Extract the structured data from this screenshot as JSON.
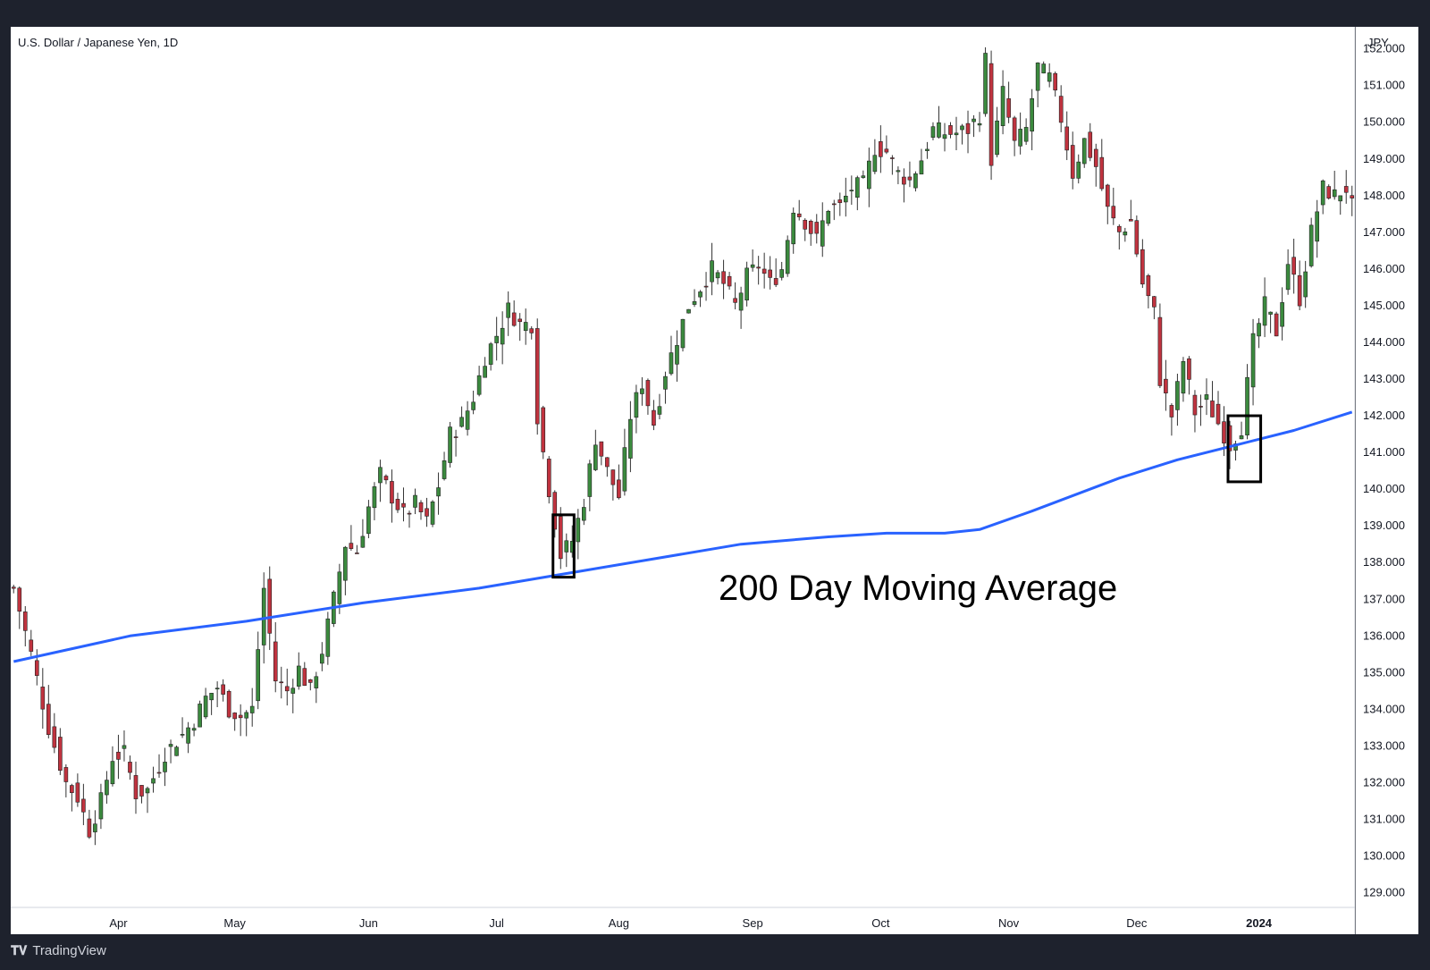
{
  "chart_data": {
    "type": "candlestick",
    "title": "U.S. Dollar / Japanese Yen, 1D",
    "currency": "JPY",
    "annotation": "200 Day Moving Average",
    "y_axis": {
      "min": 128.6,
      "max": 152.6,
      "ticks": [
        "152.000",
        "151.000",
        "150.000",
        "149.000",
        "148.000",
        "147.000",
        "146.000",
        "145.000",
        "144.000",
        "143.000",
        "142.000",
        "141.000",
        "140.000",
        "139.000",
        "138.000",
        "137.000",
        "136.000",
        "135.000",
        "134.000",
        "133.000",
        "132.000",
        "131.000",
        "130.000",
        "129.000"
      ]
    },
    "x_axis": {
      "labels": [
        "Apr",
        "May",
        "Jun",
        "Jul",
        "Aug",
        "Sep",
        "Oct",
        "Nov",
        "Dec",
        "2024"
      ],
      "bold_labels": [
        "2024"
      ]
    },
    "colors": {
      "up": "#3b8a3e",
      "down": "#c0333f",
      "moving_average": "#2962ff",
      "highlight_box": "#000000"
    },
    "price_path": [
      [
        0,
        137.3
      ],
      [
        3,
        135.5
      ],
      [
        6,
        133.5
      ],
      [
        9,
        132.0
      ],
      [
        11,
        131.6
      ],
      [
        13,
        130.7
      ],
      [
        15,
        131.5
      ],
      [
        17,
        132.7
      ],
      [
        19,
        132.8
      ],
      [
        21,
        131.7
      ],
      [
        23,
        131.8
      ],
      [
        26,
        132.8
      ],
      [
        29,
        133.3
      ],
      [
        31,
        133.7
      ],
      [
        33,
        134.3
      ],
      [
        35,
        134.6
      ],
      [
        37,
        134.0
      ],
      [
        39,
        133.8
      ],
      [
        41,
        134.0
      ],
      [
        43,
        137.3
      ],
      [
        45,
        134.8
      ],
      [
        47,
        134.5
      ],
      [
        49,
        135.1
      ],
      [
        51,
        134.5
      ],
      [
        53,
        135.6
      ],
      [
        55,
        137.0
      ],
      [
        57,
        138.5
      ],
      [
        59,
        138.3
      ],
      [
        61,
        139.5
      ],
      [
        63,
        140.4
      ],
      [
        65,
        139.8
      ],
      [
        67,
        139.3
      ],
      [
        69,
        139.6
      ],
      [
        71,
        139.1
      ],
      [
        73,
        140.1
      ],
      [
        75,
        141.5
      ],
      [
        77,
        141.8
      ],
      [
        79,
        142.5
      ],
      [
        81,
        143.6
      ],
      [
        83,
        144.2
      ],
      [
        85,
        144.9
      ],
      [
        87,
        144.5
      ],
      [
        89,
        144.5
      ],
      [
        90,
        142.0
      ],
      [
        91,
        141.0
      ],
      [
        92,
        140.0
      ],
      [
        94,
        138.2
      ],
      [
        96,
        138.6
      ],
      [
        98,
        139.7
      ],
      [
        100,
        141.4
      ],
      [
        102,
        140.5
      ],
      [
        104,
        139.8
      ],
      [
        106,
        142.0
      ],
      [
        108,
        142.9
      ],
      [
        110,
        141.8
      ],
      [
        112,
        143.2
      ],
      [
        114,
        144.1
      ],
      [
        116,
        145.0
      ],
      [
        118,
        145.5
      ],
      [
        120,
        146.0
      ],
      [
        122,
        145.6
      ],
      [
        124,
        145.0
      ],
      [
        126,
        145.8
      ],
      [
        128,
        146.1
      ],
      [
        130,
        145.6
      ],
      [
        132,
        146.0
      ],
      [
        134,
        147.7
      ],
      [
        136,
        147.3
      ],
      [
        138,
        146.8
      ],
      [
        140,
        147.7
      ],
      [
        142,
        147.7
      ],
      [
        144,
        148.2
      ],
      [
        146,
        148.3
      ],
      [
        148,
        149.3
      ],
      [
        150,
        149.2
      ],
      [
        152,
        148.6
      ],
      [
        154,
        148.4
      ],
      [
        156,
        149.0
      ],
      [
        158,
        149.8
      ],
      [
        160,
        149.7
      ],
      [
        162,
        149.7
      ],
      [
        164,
        149.8
      ],
      [
        166,
        150.2
      ],
      [
        167,
        151.7
      ],
      [
        168,
        149.0
      ],
      [
        170,
        150.8
      ],
      [
        172,
        149.4
      ],
      [
        174,
        149.8
      ],
      [
        176,
        151.5
      ],
      [
        178,
        151.2
      ],
      [
        180,
        150.1
      ],
      [
        182,
        148.6
      ],
      [
        184,
        149.5
      ],
      [
        186,
        148.8
      ],
      [
        188,
        147.6
      ],
      [
        190,
        147.0
      ],
      [
        192,
        147.3
      ],
      [
        194,
        145.6
      ],
      [
        196,
        144.8
      ],
      [
        197,
        143.0
      ],
      [
        199,
        142.0
      ],
      [
        201,
        143.5
      ],
      [
        203,
        142.1
      ],
      [
        205,
        142.4
      ],
      [
        207,
        141.8
      ],
      [
        209,
        141.2
      ],
      [
        211,
        141.7
      ],
      [
        213,
        144.0
      ],
      [
        215,
        145.0
      ],
      [
        217,
        144.3
      ],
      [
        219,
        146.2
      ],
      [
        221,
        145.2
      ],
      [
        223,
        147.0
      ],
      [
        225,
        148.2
      ],
      [
        227,
        148.0
      ],
      [
        229,
        148.2
      ],
      [
        230,
        147.7
      ]
    ],
    "moving_average": {
      "name": "200 Day Moving Average",
      "points": [
        [
          0,
          135.3
        ],
        [
          20,
          136.0
        ],
        [
          40,
          136.4
        ],
        [
          60,
          136.9
        ],
        [
          80,
          137.3
        ],
        [
          95,
          137.7
        ],
        [
          110,
          138.1
        ],
        [
          125,
          138.5
        ],
        [
          140,
          138.7
        ],
        [
          150,
          138.8
        ],
        [
          160,
          138.8
        ],
        [
          166,
          138.9
        ],
        [
          175,
          139.4
        ],
        [
          190,
          140.3
        ],
        [
          200,
          140.8
        ],
        [
          210,
          141.2
        ],
        [
          220,
          141.6
        ],
        [
          230,
          142.1
        ]
      ]
    },
    "highlight_boxes": [
      {
        "x_from": 93,
        "x_to": 96,
        "y_from": 137.6,
        "y_to": 139.3
      },
      {
        "x_from": 209,
        "x_to": 214,
        "y_from": 140.2,
        "y_to": 142.0
      }
    ],
    "x_label_positions": [
      18,
      38,
      61,
      83,
      104,
      127,
      149,
      171,
      193,
      214
    ]
  },
  "ui": {
    "brand": "TradingView",
    "brand_icon": "tradingview-logo-icon"
  }
}
